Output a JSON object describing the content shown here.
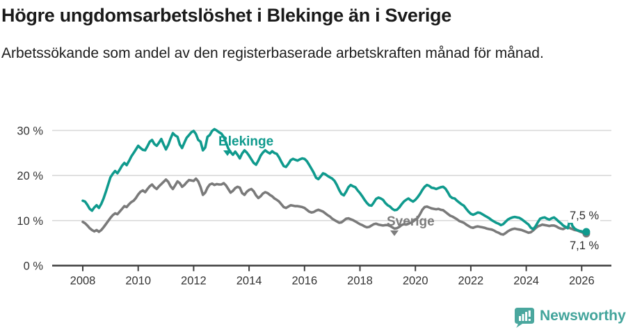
{
  "header": {
    "title": "Högre ungdomsarbetslöshet i Blekinge än i Sverige",
    "subtitle": "Arbetssökande som andel av den registerbaserade arbetskraften månad för månad."
  },
  "chart_data": {
    "type": "line",
    "title": "Högre ungdomsarbetslöshet i Blekinge än i Sverige",
    "subtitle": "Arbetssökande som andel av den registerbaserade arbetskraften månad för månad.",
    "unit": "%",
    "frequency": "monthly",
    "x_start": "2008-01",
    "x_end": "2026-03",
    "xlim": [
      2006.9,
      2027.1
    ],
    "ylim": [
      0,
      32
    ],
    "grid": "horizontal",
    "legend_position": "inline-labels",
    "y_axis": {
      "ticks": [
        {
          "value": 0,
          "label": "0 %"
        },
        {
          "value": 10,
          "label": "10 %"
        },
        {
          "value": 20,
          "label": "20 %"
        },
        {
          "value": 30,
          "label": "30 %"
        }
      ]
    },
    "x_axis": {
      "ticks": [
        2008,
        2010,
        2012,
        2014,
        2016,
        2018,
        2020,
        2022,
        2024,
        2026
      ]
    },
    "series": [
      {
        "name": "Blekinge",
        "color": "#0f9a8d",
        "end_label": "7,5 %",
        "last_value": 7.5,
        "values": [
          14.4,
          14.2,
          13.5,
          12.6,
          12.2,
          12.9,
          13.4,
          12.8,
          13.7,
          14.9,
          16.4,
          18.0,
          19.6,
          20.4,
          21.0,
          20.5,
          21.3,
          22.2,
          22.8,
          22.3,
          23.2,
          24.2,
          25.0,
          25.8,
          26.6,
          26.1,
          25.7,
          25.6,
          26.5,
          27.5,
          27.9,
          27.0,
          26.6,
          27.3,
          28.1,
          26.9,
          25.8,
          26.8,
          28.2,
          29.4,
          28.9,
          28.6,
          26.9,
          26.1,
          27.3,
          28.4,
          29.0,
          29.6,
          29.9,
          29.2,
          27.9,
          27.5,
          25.6,
          26.2,
          28.6,
          29.0,
          29.9,
          30.3,
          30.0,
          29.6,
          29.3,
          28.6,
          27.3,
          26.0,
          25.2,
          24.6,
          25.3,
          24.6,
          23.8,
          24.9,
          25.6,
          25.1,
          24.4,
          23.6,
          22.8,
          22.4,
          23.3,
          24.4,
          25.1,
          25.6,
          25.2,
          24.9,
          25.4,
          25.0,
          24.8,
          24.0,
          23.0,
          22.1,
          21.9,
          22.6,
          23.4,
          23.7,
          23.5,
          23.3,
          23.6,
          23.8,
          23.7,
          23.2,
          22.4,
          21.5,
          20.6,
          19.5,
          19.2,
          19.8,
          20.5,
          20.3,
          19.9,
          19.6,
          19.3,
          18.8,
          17.9,
          16.8,
          15.9,
          15.6,
          16.4,
          17.4,
          17.9,
          17.6,
          17.4,
          16.7,
          16.1,
          15.4,
          14.6,
          13.9,
          13.4,
          13.3,
          14.0,
          14.8,
          15.1,
          14.9,
          14.6,
          13.9,
          13.4,
          13.1,
          12.6,
          12.3,
          12.4,
          12.9,
          13.6,
          14.2,
          14.6,
          14.9,
          14.5,
          14.2,
          14.6,
          15.2,
          15.9,
          16.8,
          17.5,
          17.9,
          17.7,
          17.3,
          17.2,
          17.0,
          17.2,
          17.4,
          17.5,
          17.1,
          16.3,
          15.4,
          15.0,
          14.9,
          14.4,
          14.0,
          13.6,
          13.3,
          12.6,
          12.0,
          11.5,
          11.3,
          11.5,
          11.8,
          11.7,
          11.4,
          11.1,
          10.8,
          10.5,
          10.1,
          9.8,
          9.5,
          9.3,
          9.0,
          9.2,
          9.7,
          10.2,
          10.5,
          10.7,
          10.8,
          10.7,
          10.6,
          10.3,
          9.9,
          9.5,
          9.1,
          8.4,
          8.1,
          8.7,
          9.6,
          10.4,
          10.6,
          10.7,
          10.4,
          10.2,
          10.5,
          10.7,
          10.3,
          9.8,
          9.4,
          8.9,
          8.6,
          8.3,
          10.4,
          8.8,
          8.2,
          7.9,
          7.7,
          7.6,
          7.4,
          7.5
        ]
      },
      {
        "name": "Sverige",
        "color": "#7a7a7a",
        "end_label": "7,1 %",
        "last_value": 7.1,
        "values": [
          9.7,
          9.4,
          8.9,
          8.3,
          7.9,
          7.6,
          7.9,
          7.5,
          7.9,
          8.5,
          9.2,
          9.9,
          10.6,
          11.2,
          11.6,
          11.4,
          12.0,
          12.6,
          13.2,
          13.0,
          13.6,
          14.1,
          14.4,
          15.0,
          15.8,
          16.4,
          16.7,
          16.3,
          17.0,
          17.6,
          18.0,
          17.4,
          17.0,
          17.6,
          18.1,
          18.6,
          19.1,
          18.6,
          17.6,
          17.0,
          17.8,
          18.7,
          18.3,
          17.5,
          17.9,
          18.5,
          19.0,
          18.9,
          18.8,
          19.3,
          18.7,
          17.4,
          15.7,
          16.2,
          17.3,
          18.0,
          18.2,
          17.9,
          18.1,
          18.0,
          18.0,
          18.3,
          17.8,
          17.0,
          16.2,
          16.6,
          17.2,
          17.5,
          17.3,
          16.1,
          15.7,
          16.4,
          16.8,
          17.0,
          16.5,
          15.6,
          15.0,
          15.4,
          16.0,
          16.3,
          16.1,
          15.7,
          15.4,
          14.9,
          14.6,
          14.2,
          13.6,
          13.0,
          12.8,
          13.1,
          13.4,
          13.3,
          13.2,
          13.2,
          13.1,
          13.0,
          12.8,
          12.4,
          12.0,
          11.8,
          11.9,
          12.2,
          12.4,
          12.2,
          12.0,
          11.6,
          11.2,
          10.9,
          10.4,
          10.1,
          9.8,
          9.5,
          9.6,
          10.0,
          10.4,
          10.5,
          10.3,
          10.1,
          9.8,
          9.5,
          9.2,
          9.0,
          8.7,
          8.5,
          8.6,
          8.9,
          9.2,
          9.3,
          9.1,
          9.0,
          8.9,
          9.0,
          9.0,
          8.8,
          8.5,
          8.2,
          8.3,
          8.6,
          9.0,
          9.2,
          9.1,
          9.3,
          9.5,
          9.8,
          10.2,
          10.6,
          11.4,
          12.4,
          13.0,
          13.1,
          12.9,
          12.7,
          12.6,
          12.5,
          12.6,
          12.4,
          12.3,
          11.9,
          11.5,
          11.1,
          10.9,
          10.6,
          10.3,
          9.9,
          9.7,
          9.5,
          9.1,
          8.8,
          8.5,
          8.4,
          8.6,
          8.7,
          8.6,
          8.5,
          8.4,
          8.2,
          8.1,
          8.0,
          7.8,
          7.5,
          7.3,
          7.0,
          6.9,
          7.2,
          7.6,
          7.9,
          8.1,
          8.2,
          8.1,
          8.0,
          7.9,
          7.7,
          7.5,
          7.3,
          7.4,
          7.8,
          8.3,
          8.7,
          8.9,
          9.1,
          9.0,
          8.9,
          8.8,
          8.9,
          8.9,
          8.7,
          8.4,
          8.2,
          8.1,
          8.4,
          8.6,
          8.3,
          8.1,
          7.9,
          7.8,
          7.6,
          7.4,
          7.2,
          7.1
        ]
      }
    ]
  },
  "colors": {
    "blekinge": "#0f9a8d",
    "sverige": "#7a7a7a",
    "axis": "#3d3d3d",
    "gridline": "#d9d9d9",
    "text": "#1a1a1a",
    "brand": "#42a49b"
  },
  "footer": {
    "brand": "Newsworthy"
  }
}
